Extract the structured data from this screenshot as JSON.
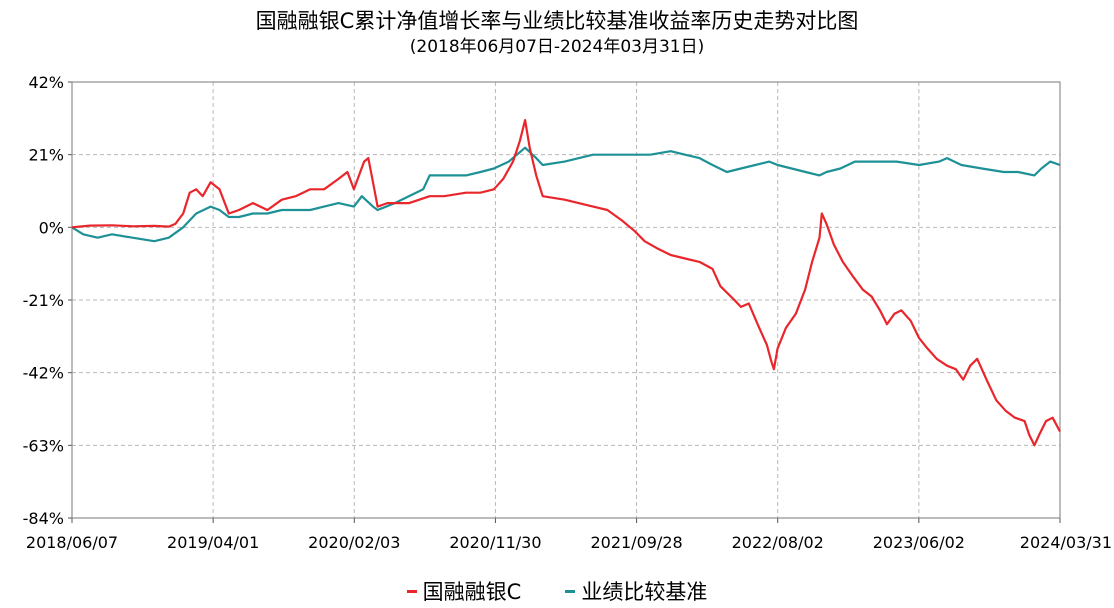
{
  "title": "国融融银C累计净值增长率与业绩比较基准收益率历史走势对比图",
  "subtitle": "(2018年06月07日-2024年03月31日)",
  "chart_data": {
    "type": "line",
    "title": "国融融银C累计净值增长率与业绩比较基准收益率历史走势对比图",
    "subtitle": "(2018年06月07日-2024年03月31日)",
    "xlabel": "",
    "ylabel": "",
    "x_ticks": [
      "2018/06/07",
      "2019/04/01",
      "2020/02/03",
      "2020/11/30",
      "2021/09/28",
      "2022/08/02",
      "2023/06/02",
      "2024/03/31"
    ],
    "y_ticks": [
      "42%",
      "21%",
      "0%",
      "-21%",
      "-42%",
      "-63%",
      "-84%"
    ],
    "xlim": [
      "2018/06/07",
      "2024/03/31"
    ],
    "ylim": [
      -84,
      42
    ],
    "grid": true,
    "legend_position": "bottom",
    "series": [
      {
        "name": "国融融银C",
        "color": "#e8262b",
        "points": [
          [
            "2018/06/07",
            0
          ],
          [
            "2018/07/15",
            0.5
          ],
          [
            "2018/09/01",
            0.6
          ],
          [
            "2018/10/15",
            0.3
          ],
          [
            "2018/12/01",
            0.4
          ],
          [
            "2019/01/01",
            0.2
          ],
          [
            "2019/01/15",
            1
          ],
          [
            "2019/02/01",
            4
          ],
          [
            "2019/02/15",
            10
          ],
          [
            "2019/03/01",
            11
          ],
          [
            "2019/03/15",
            9
          ],
          [
            "2019/04/01",
            13
          ],
          [
            "2019/04/20",
            11
          ],
          [
            "2019/05/10",
            4
          ],
          [
            "2019/06/01",
            5
          ],
          [
            "2019/07/01",
            7
          ],
          [
            "2019/08/01",
            5
          ],
          [
            "2019/09/01",
            8
          ],
          [
            "2019/10/01",
            9
          ],
          [
            "2019/11/01",
            11
          ],
          [
            "2019/12/01",
            11
          ],
          [
            "2020/01/01",
            14
          ],
          [
            "2020/01/20",
            16
          ],
          [
            "2020/02/03",
            11
          ],
          [
            "2020/02/25",
            19
          ],
          [
            "2020/03/05",
            20
          ],
          [
            "2020/03/15",
            13
          ],
          [
            "2020/03/25",
            6
          ],
          [
            "2020/04/15",
            7
          ],
          [
            "2020/06/01",
            7
          ],
          [
            "2020/07/15",
            9
          ],
          [
            "2020/08/15",
            9
          ],
          [
            "2020/10/01",
            10
          ],
          [
            "2020/11/01",
            10
          ],
          [
            "2020/11/30",
            11
          ],
          [
            "2020/12/20",
            14
          ],
          [
            "2021/01/10",
            19
          ],
          [
            "2021/01/25",
            25
          ],
          [
            "2021/02/05",
            31
          ],
          [
            "2021/02/15",
            23
          ],
          [
            "2021/03/01",
            15
          ],
          [
            "2021/03/15",
            9
          ],
          [
            "2021/05/01",
            8
          ],
          [
            "2021/07/01",
            6
          ],
          [
            "2021/08/01",
            5
          ],
          [
            "2021/09/01",
            2
          ],
          [
            "2021/09/28",
            -1
          ],
          [
            "2021/10/20",
            -4
          ],
          [
            "2021/11/15",
            -6
          ],
          [
            "2021/12/15",
            -8
          ],
          [
            "2022/01/15",
            -9
          ],
          [
            "2022/02/15",
            -10
          ],
          [
            "2022/03/15",
            -12
          ],
          [
            "2022/04/01",
            -17
          ],
          [
            "2022/05/01",
            -21
          ],
          [
            "2022/05/15",
            -23
          ],
          [
            "2022/06/01",
            -22
          ],
          [
            "2022/06/20",
            -28
          ],
          [
            "2022/07/10",
            -34
          ],
          [
            "2022/07/20",
            -39
          ],
          [
            "2022/07/25",
            -41
          ],
          [
            "2022/08/02",
            -35
          ],
          [
            "2022/08/20",
            -29
          ],
          [
            "2022/09/10",
            -25
          ],
          [
            "2022/09/30",
            -18
          ],
          [
            "2022/10/15",
            -10
          ],
          [
            "2022/10/31",
            -3
          ],
          [
            "2022/11/05",
            4
          ],
          [
            "2022/11/15",
            1
          ],
          [
            "2022/12/01",
            -5
          ],
          [
            "2022/12/20",
            -10
          ],
          [
            "2023/01/10",
            -14
          ],
          [
            "2023/02/01",
            -18
          ],
          [
            "2023/02/20",
            -20
          ],
          [
            "2023/03/10",
            -24
          ],
          [
            "2023/03/25",
            -28
          ],
          [
            "2023/04/10",
            -25
          ],
          [
            "2023/04/25",
            -24
          ],
          [
            "2023/05/15",
            -27
          ],
          [
            "2023/06/02",
            -32
          ],
          [
            "2023/06/20",
            -35
          ],
          [
            "2023/07/10",
            -38
          ],
          [
            "2023/08/01",
            -40
          ],
          [
            "2023/08/20",
            -41
          ],
          [
            "2023/09/05",
            -44
          ],
          [
            "2023/09/20",
            -40
          ],
          [
            "2023/10/05",
            -38
          ],
          [
            "2023/10/25",
            -44
          ],
          [
            "2023/11/15",
            -50
          ],
          [
            "2023/12/05",
            -53
          ],
          [
            "2023/12/25",
            -55
          ],
          [
            "2024/01/15",
            -56
          ],
          [
            "2024/01/25",
            -60
          ],
          [
            "2024/02/05",
            -63
          ],
          [
            "2024/02/15",
            -60
          ],
          [
            "2024/03/01",
            -56
          ],
          [
            "2024/03/15",
            -55
          ],
          [
            "2024/03/31",
            -59
          ]
        ]
      },
      {
        "name": "业绩比较基准",
        "color": "#1e9196",
        "points": [
          [
            "2018/06/07",
            0
          ],
          [
            "2018/07/01",
            -2
          ],
          [
            "2018/08/01",
            -3
          ],
          [
            "2018/09/01",
            -2
          ],
          [
            "2018/10/15",
            -3
          ],
          [
            "2018/12/01",
            -4
          ],
          [
            "2019/01/01",
            -3
          ],
          [
            "2019/02/01",
            0
          ],
          [
            "2019/03/01",
            4
          ],
          [
            "2019/04/01",
            6
          ],
          [
            "2019/04/20",
            5
          ],
          [
            "2019/05/10",
            3
          ],
          [
            "2019/06/01",
            3
          ],
          [
            "2019/07/01",
            4
          ],
          [
            "2019/08/01",
            4
          ],
          [
            "2019/09/01",
            5
          ],
          [
            "2019/10/01",
            5
          ],
          [
            "2019/11/01",
            5
          ],
          [
            "2019/12/01",
            6
          ],
          [
            "2020/01/01",
            7
          ],
          [
            "2020/02/03",
            6
          ],
          [
            "2020/02/20",
            9
          ],
          [
            "2020/03/15",
            6
          ],
          [
            "2020/03/25",
            5
          ],
          [
            "2020/05/01",
            7
          ],
          [
            "2020/07/01",
            11
          ],
          [
            "2020/07/15",
            15
          ],
          [
            "2020/08/15",
            15
          ],
          [
            "2020/10/01",
            15
          ],
          [
            "2020/11/01",
            16
          ],
          [
            "2020/11/30",
            17
          ],
          [
            "2021/01/01",
            19
          ],
          [
            "2021/02/05",
            23
          ],
          [
            "2021/03/01",
            20
          ],
          [
            "2021/03/15",
            18
          ],
          [
            "2021/05/01",
            19
          ],
          [
            "2021/07/01",
            21
          ],
          [
            "2021/09/28",
            21
          ],
          [
            "2021/11/01",
            21
          ],
          [
            "2021/12/15",
            22
          ],
          [
            "2022/01/15",
            21
          ],
          [
            "2022/02/15",
            20
          ],
          [
            "2022/03/15",
            18
          ],
          [
            "2022/04/15",
            16
          ],
          [
            "2022/05/15",
            17
          ],
          [
            "2022/06/15",
            18
          ],
          [
            "2022/07/15",
            19
          ],
          [
            "2022/08/02",
            18
          ],
          [
            "2022/09/01",
            17
          ],
          [
            "2022/10/01",
            16
          ],
          [
            "2022/10/31",
            15
          ],
          [
            "2022/11/15",
            16
          ],
          [
            "2022/12/15",
            17
          ],
          [
            "2023/01/15",
            19
          ],
          [
            "2023/03/01",
            19
          ],
          [
            "2023/04/15",
            19
          ],
          [
            "2023/06/02",
            18
          ],
          [
            "2023/07/15",
            19
          ],
          [
            "2023/08/01",
            20
          ],
          [
            "2023/09/01",
            18
          ],
          [
            "2023/10/15",
            17
          ],
          [
            "2023/12/01",
            16
          ],
          [
            "2024/01/01",
            16
          ],
          [
            "2024/02/05",
            15
          ],
          [
            "2024/02/20",
            17
          ],
          [
            "2024/03/10",
            19
          ],
          [
            "2024/03/31",
            18
          ]
        ]
      }
    ]
  }
}
